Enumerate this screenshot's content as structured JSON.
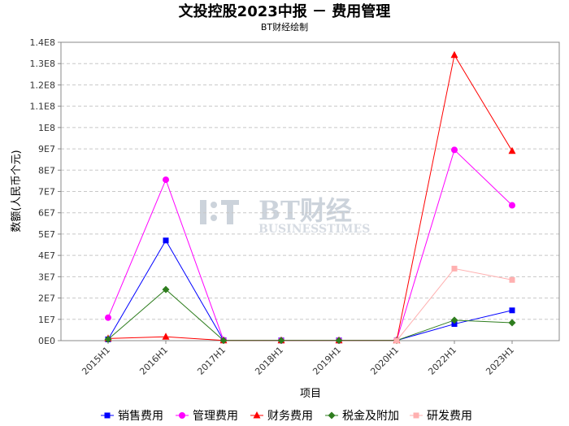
{
  "chart_data": {
    "type": "line",
    "title": "文投控股2023中报 － 费用管理",
    "subtitle": "BT财经绘制",
    "xlabel": "项目",
    "ylabel": "数额(人民币个元)",
    "categories": [
      "2015H1",
      "2016H1",
      "2017H1",
      "2018H1",
      "2019H1",
      "2020H1",
      "2022H1",
      "2023H1"
    ],
    "ylim": [
      0,
      140000000
    ],
    "yticks": [
      0,
      10000000,
      20000000,
      30000000,
      40000000,
      50000000,
      60000000,
      70000000,
      80000000,
      90000000,
      100000000,
      110000000,
      120000000,
      130000000,
      140000000
    ],
    "ytick_labels": [
      "0E0",
      "1E7",
      "2E7",
      "3E7",
      "4E7",
      "5E7",
      "6E7",
      "7E7",
      "8E7",
      "9E7",
      "1E8",
      "1.1E8",
      "1.2E8",
      "1.3E8",
      "1.4E8"
    ],
    "grid": true,
    "legend_position": "bottom",
    "series": [
      {
        "name": "销售费用",
        "color": "#0000ff",
        "marker": "square",
        "values": [
          600000,
          47000000,
          150000,
          100000,
          100000,
          100000,
          7800000,
          14200000
        ]
      },
      {
        "name": "管理费用",
        "color": "#ff00ff",
        "marker": "circle",
        "values": [
          10800000,
          75500000,
          200000,
          100000,
          100000,
          200000,
          89500000,
          63500000
        ]
      },
      {
        "name": "财务费用",
        "color": "#ff0000",
        "marker": "triangle",
        "values": [
          1000000,
          1800000,
          100000,
          100000,
          100000,
          100000,
          134000000,
          89000000
        ]
      },
      {
        "name": "税金及附加",
        "color": "#2e7d1e",
        "marker": "diamond",
        "values": [
          600000,
          24000000,
          100000,
          100000,
          100000,
          100000,
          9600000,
          8400000
        ]
      },
      {
        "name": "研发费用",
        "color": "#ffb0b0",
        "marker": "square",
        "values": [
          null,
          null,
          null,
          null,
          null,
          0,
          33800000,
          28500000
        ]
      }
    ],
    "watermark": {
      "main": "BT财经",
      "sub": "BUSINESSTIMES"
    }
  }
}
